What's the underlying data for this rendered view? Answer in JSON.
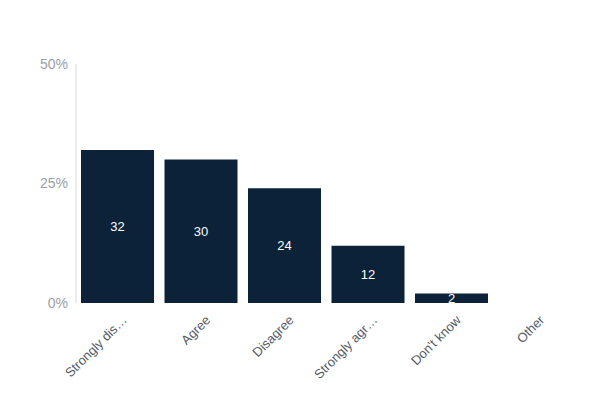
{
  "chart_data": {
    "type": "bar",
    "categories": [
      "Strongly dis…",
      "Agree",
      "Disagree",
      "Strongly agr…",
      "Don't know",
      "Other"
    ],
    "values": [
      32,
      30,
      24,
      12,
      2,
      null
    ],
    "color": "#0b2239",
    "ylim": [
      0,
      50
    ],
    "yticks": [
      {
        "value": 0,
        "label": "0%"
      },
      {
        "value": 25,
        "label": "25%"
      },
      {
        "value": 50,
        "label": "50%"
      }
    ],
    "grid": false,
    "data_labels": true
  }
}
